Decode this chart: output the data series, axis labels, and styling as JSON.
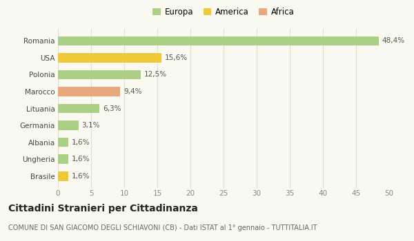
{
  "categories": [
    "Brasile",
    "Ungheria",
    "Albania",
    "Germania",
    "Lituania",
    "Marocco",
    "Polonia",
    "USA",
    "Romania"
  ],
  "values": [
    1.6,
    1.6,
    1.6,
    3.1,
    6.3,
    9.4,
    12.5,
    15.6,
    48.4
  ],
  "colors": [
    "#f0c93a",
    "#aacf85",
    "#aacf85",
    "#aacf85",
    "#aacf85",
    "#e8a87c",
    "#aacf85",
    "#f0c93a",
    "#aacf85"
  ],
  "labels": [
    "1,6%",
    "1,6%",
    "1,6%",
    "3,1%",
    "6,3%",
    "9,4%",
    "12,5%",
    "15,6%",
    "48,4%"
  ],
  "xlim": [
    0,
    50
  ],
  "xticks": [
    0,
    5,
    10,
    15,
    20,
    25,
    30,
    35,
    40,
    45,
    50
  ],
  "title": "Cittadini Stranieri per Cittadinanza",
  "subtitle": "COMUNE DI SAN GIACOMO DEGLI SCHIAVONI (CB) - Dati ISTAT al 1° gennaio - TUTTITALIA.IT",
  "legend_labels": [
    "Europa",
    "America",
    "Africa"
  ],
  "legend_colors": [
    "#aacf85",
    "#f0c93a",
    "#e8a87c"
  ],
  "bg_color": "#f9f9f2",
  "bar_height": 0.55,
  "grid_color": "#e0e0d0",
  "label_fontsize": 7.5,
  "tick_fontsize": 7.5,
  "legend_fontsize": 8.5,
  "title_fontsize": 10,
  "subtitle_fontsize": 7
}
